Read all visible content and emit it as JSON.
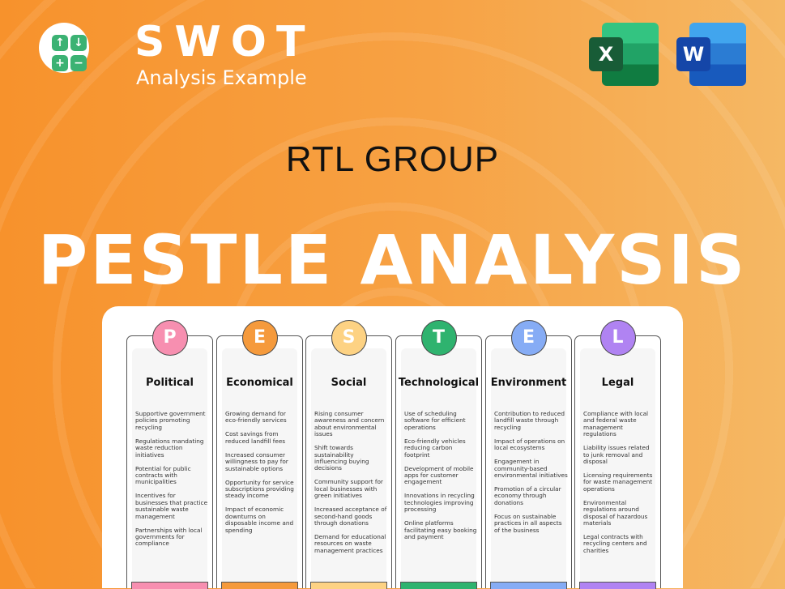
{
  "header": {
    "brand_title": "SWOT",
    "brand_subtitle": "Analysis Example",
    "logo_glyphs": [
      "↑",
      "↓",
      "+",
      "−"
    ],
    "excel_letter": "X",
    "word_letter": "W"
  },
  "company": "RTL GROUP",
  "title": "PESTLE ANALYSIS",
  "colors": {
    "background": "#f7a244",
    "political": "#f78fb0",
    "economical": "#f59a3c",
    "social": "#fdd283",
    "technological": "#2fb36f",
    "environment": "#86acf5",
    "legal": "#b083f2"
  },
  "columns": [
    {
      "letter": "P",
      "title": "Political",
      "color": "#f78fb0",
      "items": [
        "Supportive government policies promoting recycling",
        "Regulations mandating waste reduction initiatives",
        "Potential for public contracts with municipalities",
        "Incentives for businesses that practice sustainable waste management",
        "Partnerships with local governments for compliance"
      ]
    },
    {
      "letter": "E",
      "title": "Economical",
      "color": "#f59a3c",
      "items": [
        "Growing demand for eco-friendly services",
        "Cost savings from reduced landfill fees",
        "Increased consumer willingness to pay for sustainable options",
        "Opportunity for service subscriptions providing steady income",
        "Impact of economic downturns on disposable income and spending"
      ]
    },
    {
      "letter": "S",
      "title": "Social",
      "color": "#fdd283",
      "items": [
        "Rising consumer awareness and concern about environmental issues",
        "Shift towards sustainability influencing buying decisions",
        "Community support for local businesses with green initiatives",
        "Increased acceptance of second-hand goods through donations",
        "Demand for educational resources on waste management practices"
      ]
    },
    {
      "letter": "T",
      "title": "Technological",
      "color": "#2fb36f",
      "items": [
        "Use of scheduling software for efficient operations",
        "Eco-friendly vehicles reducing carbon footprint",
        "Development of mobile apps for customer engagement",
        "Innovations in recycling technologies improving processing",
        "Online platforms facilitating easy booking and payment"
      ]
    },
    {
      "letter": "E",
      "title": "Environment",
      "color": "#86acf5",
      "items": [
        "Contribution to reduced landfill waste through recycling",
        "Impact of operations on local ecosystems",
        "Engagement in community-based environmental initiatives",
        "Promotion of a circular economy through donations",
        "Focus on sustainable practices in all aspects of the business"
      ]
    },
    {
      "letter": "L",
      "title": "Legal",
      "color": "#b083f2",
      "items": [
        "Compliance with local and federal waste management regulations",
        "Liability issues related to junk removal and disposal",
        "Licensing requirements for waste management operations",
        "Environmental regulations around disposal of hazardous materials",
        "Legal contracts with recycling centers and charities"
      ]
    }
  ]
}
